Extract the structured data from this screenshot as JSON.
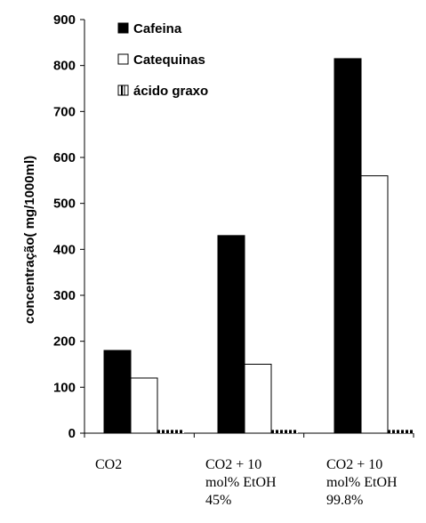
{
  "chart_data": {
    "type": "bar",
    "ylabel": "concentração( mg/1000ml)",
    "ylim": [
      0,
      900
    ],
    "yticks": [
      0,
      100,
      200,
      300,
      400,
      500,
      600,
      700,
      800,
      900
    ],
    "categories": [
      [
        "CO2"
      ],
      [
        "CO2 + 10",
        "mol% EtOH",
        "45%"
      ],
      [
        "CO2 + 10",
        "mol% EtOH",
        "99.8%"
      ]
    ],
    "series": [
      {
        "name": "Cafeina",
        "values": [
          180,
          430,
          815
        ],
        "fill": "#000000",
        "pattern": "solid"
      },
      {
        "name": "Catequinas",
        "values": [
          120,
          150,
          560
        ],
        "fill": "#ffffff",
        "pattern": "outline"
      },
      {
        "name": "ácido graxo",
        "values": [
          5,
          5,
          5
        ],
        "fill": "#ffffff",
        "pattern": "dashed"
      }
    ],
    "legend_position": "top-left",
    "grid": false
  }
}
